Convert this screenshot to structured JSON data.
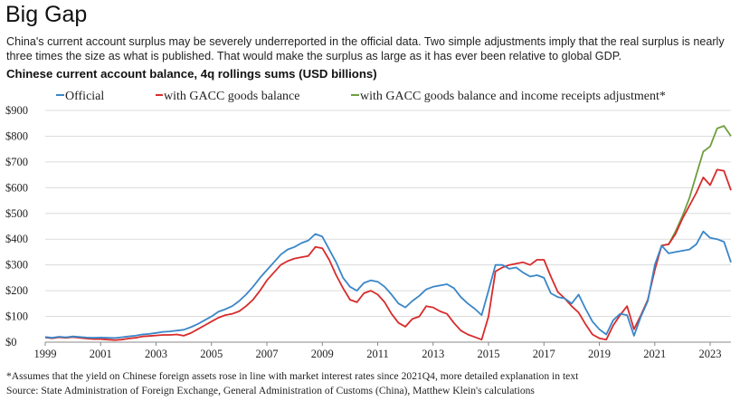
{
  "header": {
    "title": "Big Gap",
    "subtitle": "China's current account surplus may be severely underreported in the official data. Two simple adjustments imply that the real surplus is nearly three times the size as what is published. That would make the surplus as large as it has ever been relative to global GDP.",
    "chart_heading": "Chinese current account balance, 4q rollings sums (USD billions)"
  },
  "footer": {
    "note": "*Assumes that the yield on Chinese foreign assets rose in line with market interest rates since 2021Q4, more detailed explanation in text",
    "source": "Source: State Administration of Foreign Exchange, General Administration of Customs (China), Matthew Klein's calculations"
  },
  "chart_data": {
    "type": "line",
    "grid": true,
    "legend_position": "top",
    "xlim": [
      1999,
      2023.75
    ],
    "ylim": [
      0,
      900
    ],
    "x_ticks": [
      1999,
      2001,
      2003,
      2005,
      2007,
      2009,
      2011,
      2013,
      2015,
      2017,
      2019,
      2021,
      2023
    ],
    "x_tick_labels": [
      "1999",
      "2001",
      "2003",
      "2005",
      "2007",
      "2009",
      "2011",
      "2013",
      "2015",
      "2017",
      "2019",
      "2021",
      "2023"
    ],
    "y_ticks": [
      0,
      100,
      200,
      300,
      400,
      500,
      600,
      700,
      800,
      900
    ],
    "y_tick_labels": [
      "$0",
      "$100",
      "$200",
      "$300",
      "$400",
      "$500",
      "$600",
      "$700",
      "$800",
      "$900"
    ],
    "series": [
      {
        "name": "Official",
        "color": "#3a86c8",
        "x": [
          1999,
          1999.25,
          1999.5,
          1999.75,
          2000,
          2000.25,
          2000.5,
          2000.75,
          2001,
          2001.25,
          2001.5,
          2001.75,
          2002,
          2002.25,
          2002.5,
          2002.75,
          2003,
          2003.25,
          2003.5,
          2003.75,
          2004,
          2004.25,
          2004.5,
          2004.75,
          2005,
          2005.25,
          2005.5,
          2005.75,
          2006,
          2006.25,
          2006.5,
          2006.75,
          2007,
          2007.25,
          2007.5,
          2007.75,
          2008,
          2008.25,
          2008.5,
          2008.75,
          2009,
          2009.25,
          2009.5,
          2009.75,
          2010,
          2010.25,
          2010.5,
          2010.75,
          2011,
          2011.25,
          2011.5,
          2011.75,
          2012,
          2012.25,
          2012.5,
          2012.75,
          2013,
          2013.25,
          2013.5,
          2013.75,
          2014,
          2014.25,
          2014.5,
          2014.75,
          2015,
          2015.25,
          2015.5,
          2015.75,
          2016,
          2016.25,
          2016.5,
          2016.75,
          2017,
          2017.25,
          2017.5,
          2017.75,
          2018,
          2018.25,
          2018.5,
          2018.75,
          2019,
          2019.25,
          2019.5,
          2019.75,
          2020,
          2020.25,
          2020.5,
          2020.75,
          2021,
          2021.25,
          2021.5,
          2021.75,
          2022,
          2022.25,
          2022.5,
          2022.75,
          2023,
          2023.25,
          2023.5,
          2023.75
        ],
        "values": [
          20,
          17,
          21,
          19,
          22,
          20,
          18,
          17,
          18,
          17,
          16,
          19,
          22,
          25,
          30,
          32,
          36,
          40,
          42,
          45,
          48,
          58,
          70,
          85,
          100,
          118,
          128,
          140,
          160,
          185,
          215,
          250,
          280,
          310,
          340,
          360,
          370,
          385,
          395,
          420,
          410,
          360,
          310,
          250,
          215,
          200,
          230,
          240,
          235,
          215,
          185,
          150,
          135,
          160,
          180,
          205,
          215,
          220,
          225,
          210,
          175,
          150,
          130,
          105,
          200,
          300,
          300,
          285,
          290,
          270,
          255,
          260,
          250,
          190,
          175,
          170,
          150,
          185,
          130,
          80,
          50,
          30,
          85,
          110,
          105,
          25,
          100,
          160,
          300,
          375,
          345,
          350,
          355,
          360,
          380,
          430,
          405,
          400,
          390,
          310
        ]
      },
      {
        "name": "with GACC goods balance",
        "color": "#d82b2b",
        "x": [
          1999,
          1999.25,
          1999.5,
          1999.75,
          2000,
          2000.25,
          2000.5,
          2000.75,
          2001,
          2001.25,
          2001.5,
          2001.75,
          2002,
          2002.25,
          2002.5,
          2002.75,
          2003,
          2003.25,
          2003.5,
          2003.75,
          2004,
          2004.25,
          2004.5,
          2004.75,
          2005,
          2005.25,
          2005.5,
          2005.75,
          2006,
          2006.25,
          2006.5,
          2006.75,
          2007,
          2007.25,
          2007.5,
          2007.75,
          2008,
          2008.25,
          2008.5,
          2008.75,
          2009,
          2009.25,
          2009.5,
          2009.75,
          2010,
          2010.25,
          2010.5,
          2010.75,
          2011,
          2011.25,
          2011.5,
          2011.75,
          2012,
          2012.25,
          2012.5,
          2012.75,
          2013,
          2013.25,
          2013.5,
          2013.75,
          2014,
          2014.25,
          2014.5,
          2014.75,
          2015,
          2015.25,
          2015.5,
          2015.75,
          2016,
          2016.25,
          2016.5,
          2016.75,
          2017,
          2017.25,
          2017.5,
          2017.75,
          2018,
          2018.25,
          2018.5,
          2018.75,
          2019,
          2019.25,
          2019.5,
          2019.75,
          2020,
          2020.25,
          2020.5,
          2020.75,
          2021,
          2021.25,
          2021.5,
          2021.75,
          2022,
          2022.25,
          2022.5,
          2022.75,
          2023,
          2023.25,
          2023.5,
          2023.75
        ],
        "values": [
          18,
          15,
          19,
          17,
          20,
          17,
          14,
          12,
          12,
          10,
          8,
          10,
          14,
          17,
          22,
          24,
          26,
          28,
          28,
          30,
          25,
          35,
          50,
          65,
          80,
          95,
          105,
          110,
          120,
          140,
          165,
          200,
          240,
          270,
          300,
          315,
          325,
          330,
          335,
          370,
          365,
          320,
          260,
          210,
          165,
          155,
          190,
          200,
          185,
          155,
          110,
          75,
          60,
          90,
          100,
          140,
          135,
          120,
          110,
          75,
          45,
          30,
          20,
          10,
          100,
          275,
          290,
          300,
          305,
          310,
          300,
          320,
          320,
          255,
          195,
          170,
          140,
          115,
          70,
          30,
          15,
          10,
          65,
          105,
          140,
          50,
          105,
          165,
          280,
          375,
          380,
          420,
          480,
          530,
          580,
          640,
          610,
          670,
          665,
          590
        ]
      },
      {
        "name": "with GACC goods balance and income receipts adjustment*",
        "color": "#6e9e40",
        "x": [
          2021.25,
          2021.5,
          2021.75,
          2022,
          2022.25,
          2022.5,
          2022.75,
          2023,
          2023.25,
          2023.5,
          2023.75
        ],
        "values": [
          375,
          380,
          430,
          490,
          560,
          650,
          740,
          760,
          830,
          840,
          800
        ]
      }
    ]
  }
}
